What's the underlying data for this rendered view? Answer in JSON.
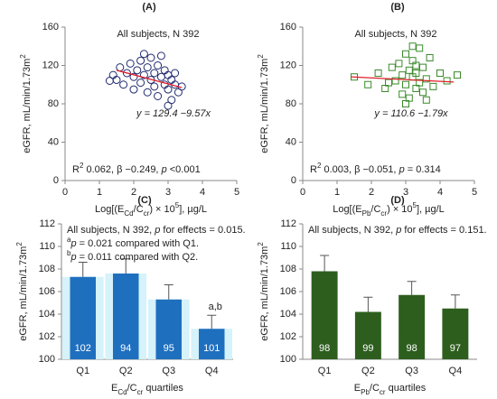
{
  "chart_data": [
    {
      "type": "scatter",
      "panel_label": "(A)",
      "subtitle": "All subjects, N 392",
      "x": [
        1.4,
        1.5,
        1.6,
        1.7,
        1.8,
        1.9,
        2.0,
        2.0,
        2.1,
        2.2,
        2.2,
        2.3,
        2.4,
        2.4,
        2.5,
        2.5,
        2.6,
        2.6,
        2.7,
        2.7,
        2.8,
        2.8,
        2.9,
        2.9,
        3.0,
        3.0,
        3.1,
        3.1,
        3.2,
        3.2,
        3.3,
        3.4,
        1.3,
        2.3,
        3.0
      ],
      "values": [
        110,
        105,
        118,
        100,
        112,
        122,
        108,
        95,
        115,
        125,
        102,
        110,
        118,
        92,
        105,
        128,
        112,
        98,
        120,
        88,
        108,
        130,
        100,
        115,
        95,
        110,
        105,
        84,
        100,
        112,
        92,
        98,
        104,
        132,
        78
      ],
      "marker": "circle",
      "color": "#1f2a6e",
      "fit_line": {
        "x": [
          1.5,
          3.4
        ],
        "y": [
          115.0,
          96.9
        ],
        "color": "#e0202a"
      },
      "equation": [
        {
          "text": "y = 129.4 −9.57x",
          "style": "italic"
        }
      ],
      "stats": [
        {
          "text": "R"
        },
        {
          "text": "2",
          "style": "sup"
        },
        {
          "text": " 0.062, β −0.249, "
        },
        {
          "text": "p",
          "style": "italic"
        },
        {
          "text": " <0.001"
        }
      ],
      "y_label": [
        {
          "text": "eGFR, mL/min/1.73m"
        },
        {
          "text": "2",
          "style": "sup"
        }
      ],
      "x_label": [
        {
          "text": "Log[(E"
        },
        {
          "text": "Cd",
          "style": "sub"
        },
        {
          "text": "/C"
        },
        {
          "text": "cr",
          "style": "sub"
        },
        {
          "text": ") × 10"
        },
        {
          "text": "5",
          "style": "sup"
        },
        {
          "text": "], µg/L"
        }
      ],
      "xlim": [
        0,
        5
      ],
      "xticks": [
        0,
        1,
        2,
        3,
        4,
        5
      ],
      "ylim": [
        0,
        160
      ],
      "yticks": [
        0,
        40,
        80,
        120,
        160
      ]
    },
    {
      "type": "scatter",
      "panel_label": "(B)",
      "subtitle": "All subjects, N 392",
      "x": [
        1.5,
        1.9,
        2.2,
        2.4,
        2.6,
        2.7,
        2.8,
        2.9,
        2.9,
        3.0,
        3.0,
        3.1,
        3.1,
        3.2,
        3.2,
        3.3,
        3.3,
        3.4,
        3.4,
        3.5,
        3.5,
        3.6,
        3.7,
        3.8,
        4.0,
        4.2,
        4.5,
        3.0,
        3.2,
        2.5,
        3.6,
        3.3
      ],
      "values": [
        108,
        100,
        112,
        96,
        118,
        104,
        122,
        90,
        110,
        132,
        100,
        115,
        86,
        108,
        125,
        96,
        112,
        138,
        102,
        118,
        92,
        106,
        128,
        98,
        112,
        104,
        110,
        80,
        140,
        102,
        84,
        120
      ],
      "marker": "square",
      "color": "#3a8a2a",
      "fit_line": {
        "x": [
          1.4,
          4.4
        ],
        "y": [
          108.1,
          102.7
        ],
        "color": "#e0202a"
      },
      "equation": [
        {
          "text": "y = 110.6 −1.79x",
          "style": "italic"
        }
      ],
      "stats": [
        {
          "text": "R"
        },
        {
          "text": "2",
          "style": "sup"
        },
        {
          "text": " 0.003, β −0.051, "
        },
        {
          "text": "p",
          "style": "italic"
        },
        {
          "text": " = 0.314"
        }
      ],
      "y_label": [
        {
          "text": "eGFR, mL/min/1.73m"
        },
        {
          "text": "2",
          "style": "sup"
        }
      ],
      "x_label": [
        {
          "text": "Log[(E"
        },
        {
          "text": "Pb",
          "style": "sub"
        },
        {
          "text": "/C"
        },
        {
          "text": "cr",
          "style": "sub"
        },
        {
          "text": ") × 10"
        },
        {
          "text": "5",
          "style": "sup"
        },
        {
          "text": "], µg/L"
        }
      ],
      "xlim": [
        0,
        5
      ],
      "xticks": [
        0,
        1,
        2,
        3,
        4,
        5
      ],
      "ylim": [
        0,
        160
      ],
      "yticks": [
        0,
        40,
        80,
        120,
        160
      ]
    },
    {
      "type": "bar",
      "panel_label": "(C)",
      "notes": [
        [
          {
            "text": "All subjects, N 392, "
          },
          {
            "text": "p",
            "style": "italic"
          },
          {
            "text": " for effects = 0.015."
          }
        ],
        [
          {
            "text": "a",
            "style": "sup"
          },
          {
            "text": "p",
            "style": "italic"
          },
          {
            "text": " = 0.021 compared with Q1."
          }
        ],
        [
          {
            "text": "b",
            "style": "sup"
          },
          {
            "text": "p",
            "style": "italic"
          },
          {
            "text": " = 0.011 compared with  Q2."
          }
        ]
      ],
      "categories": [
        "Q1",
        "Q2",
        "Q3",
        "Q4"
      ],
      "values": [
        107.3,
        107.6,
        105.3,
        102.7
      ],
      "errors": [
        1.3,
        1.3,
        1.3,
        1.2
      ],
      "bar_labels": [
        102,
        94,
        95,
        101
      ],
      "annotation": {
        "index": 3,
        "text": "a,b"
      },
      "color": "#1f6fbf",
      "band_color": "#d6f2fa",
      "y_label": [
        {
          "text": "eGFR, mL/min/1.73m"
        },
        {
          "text": "2",
          "style": "sup"
        }
      ],
      "x_label": [
        {
          "text": "E"
        },
        {
          "text": "Cd",
          "style": "sub"
        },
        {
          "text": "/C"
        },
        {
          "text": "cr",
          "style": "sub"
        },
        {
          "text": " quartiles"
        }
      ],
      "ylim": [
        100,
        112
      ],
      "yticks": [
        100,
        102,
        104,
        106,
        108,
        110,
        112
      ]
    },
    {
      "type": "bar",
      "panel_label": "(D)",
      "notes": [
        [
          {
            "text": "All subjects, N 392, "
          },
          {
            "text": "p",
            "style": "italic"
          },
          {
            "text": " for effects = 0.151."
          }
        ]
      ],
      "categories": [
        "Q1",
        "Q2",
        "Q3",
        "Q4"
      ],
      "values": [
        107.8,
        104.2,
        105.7,
        104.5
      ],
      "errors": [
        1.4,
        1.3,
        1.2,
        1.2
      ],
      "bar_labels": [
        98,
        99,
        98,
        97
      ],
      "color": "#2d5e1e",
      "y_label": [
        {
          "text": "eGFR, mL/min/1.73m"
        },
        {
          "text": "2",
          "style": "sup"
        }
      ],
      "x_label": [
        {
          "text": "E"
        },
        {
          "text": "Pb",
          "style": "sub"
        },
        {
          "text": "/C"
        },
        {
          "text": "cr",
          "style": "sub"
        },
        {
          "text": " quartiles"
        }
      ],
      "ylim": [
        100,
        112
      ],
      "yticks": [
        100,
        102,
        104,
        106,
        108,
        110,
        112
      ]
    }
  ]
}
